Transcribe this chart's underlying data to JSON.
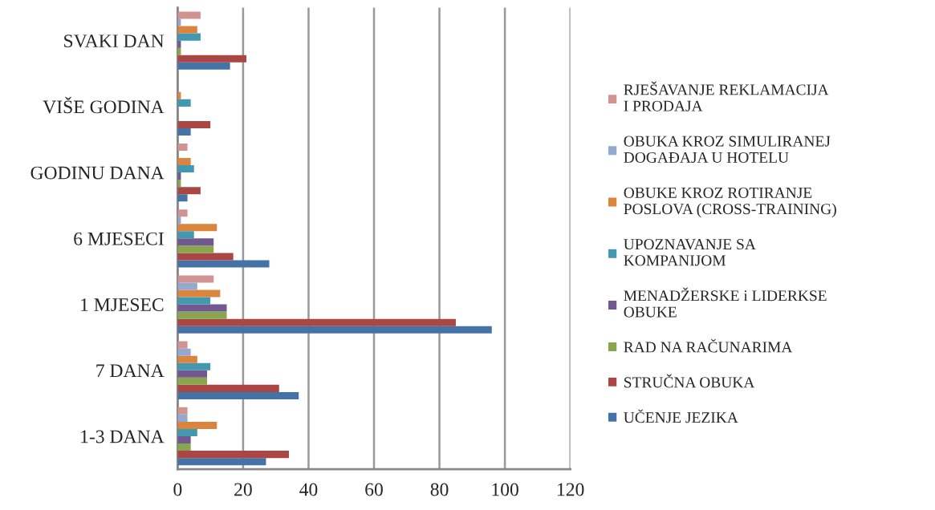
{
  "chart_data": {
    "type": "bar",
    "orientation": "horizontal",
    "categories": [
      "SVAKI DAN",
      "VIŠE GODINA",
      "GODINU DANA",
      "6 MJESECI",
      "1 MJESEC",
      "7 DANA",
      "1-3 DANA"
    ],
    "series": [
      {
        "name": "UČENJE JEZIKA",
        "color": "#4572a7",
        "values": [
          16,
          4,
          3,
          28,
          96,
          37,
          27
        ]
      },
      {
        "name": "STRUČNA OBUKA",
        "color": "#aa4643",
        "values": [
          21,
          10,
          7,
          17,
          85,
          31,
          34
        ]
      },
      {
        "name": "RAD NA RAČUNARIMA",
        "color": "#89a54e",
        "values": [
          1,
          0,
          1,
          11,
          15,
          9,
          4
        ]
      },
      {
        "name": "MENADŽERSKE i LIDERKSE\nOBUKE",
        "color": "#71588f",
        "values": [
          1,
          0,
          1,
          11,
          15,
          9,
          4
        ]
      },
      {
        "name": "UPOZNAVANJE SA\nKOMPANIJOM",
        "color": "#4198af",
        "values": [
          7,
          4,
          5,
          5,
          10,
          10,
          6
        ]
      },
      {
        "name": "OBUKE KROZ ROTIRANJE\nPOSLOVA (CROSS-TRAINING)",
        "color": "#db843d",
        "values": [
          6,
          1,
          4,
          12,
          13,
          6,
          12
        ]
      },
      {
        "name": "OBUKA KROZ SIMULIRANEJ\nDOGAĐAJA U HOTELU",
        "color": "#93a9cf",
        "values": [
          1,
          0,
          0,
          1,
          6,
          4,
          3
        ]
      },
      {
        "name": "RJEŠAVANJE REKLAMACIJA\nI PRODAJA",
        "color": "#d19392",
        "values": [
          7,
          0,
          3,
          3,
          11,
          3,
          3
        ]
      }
    ],
    "xlim": [
      0,
      120
    ],
    "xticks": [
      0,
      20,
      40,
      60,
      80,
      100,
      120
    ],
    "grid": "x",
    "legend": "right"
  }
}
